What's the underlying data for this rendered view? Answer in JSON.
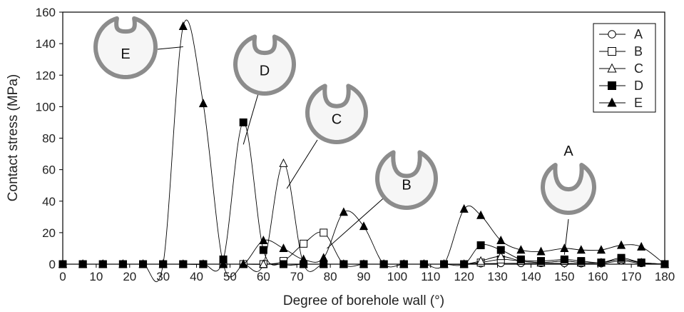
{
  "chart_data": {
    "type": "line",
    "xlabel": "Degree of borehole wall (°)",
    "ylabel": "Contact stress (MPa)",
    "xlim": [
      0,
      180
    ],
    "ylim": [
      0,
      160
    ],
    "xticks": [
      0,
      10,
      20,
      30,
      40,
      50,
      60,
      70,
      80,
      90,
      100,
      110,
      120,
      130,
      140,
      150,
      160,
      170,
      180
    ],
    "yticks": [
      0,
      20,
      40,
      60,
      80,
      100,
      120,
      140,
      160
    ],
    "legend_position": "top-right",
    "series": [
      {
        "name": "A",
        "marker": "circle-open",
        "x": [
          0,
          6,
          12,
          18,
          24,
          30,
          36,
          42,
          48,
          54,
          60,
          66,
          72,
          78,
          84,
          90,
          96,
          102,
          108,
          114,
          120,
          125,
          131,
          137,
          143,
          150,
          155,
          161,
          167,
          173,
          180
        ],
        "y": [
          0,
          0,
          0,
          0,
          0,
          0,
          0,
          0,
          0,
          0,
          0,
          0,
          0,
          0,
          0,
          0,
          0,
          0,
          0,
          0,
          0,
          0.3,
          0.5,
          0.5,
          0.5,
          0.5,
          0.3,
          0.3,
          2,
          0.5,
          0
        ]
      },
      {
        "name": "B",
        "marker": "square-open",
        "x": [
          0,
          6,
          12,
          18,
          24,
          30,
          36,
          42,
          48,
          54,
          60,
          66,
          72,
          78,
          84,
          90,
          96,
          102,
          108,
          114,
          120,
          125,
          131,
          137,
          143,
          150,
          155,
          161,
          167,
          173,
          180
        ],
        "y": [
          0,
          0,
          0,
          0,
          0,
          0,
          0,
          0,
          0,
          0,
          0,
          2,
          13,
          20,
          0,
          0,
          0,
          0,
          0,
          0,
          0,
          1,
          3,
          2,
          1,
          2,
          1,
          1,
          3,
          1,
          0
        ]
      },
      {
        "name": "C",
        "marker": "triangle-open",
        "x": [
          0,
          6,
          12,
          18,
          24,
          30,
          36,
          42,
          48,
          54,
          60,
          66,
          72,
          78,
          84,
          90,
          96,
          102,
          108,
          114,
          120,
          125,
          131,
          137,
          143,
          150,
          155,
          161,
          167,
          173,
          180
        ],
        "y": [
          0,
          0,
          0,
          0,
          0,
          0,
          0,
          0,
          0,
          0,
          0,
          64,
          0,
          0,
          0,
          0,
          0,
          0,
          0,
          0,
          0,
          2,
          5,
          2,
          1,
          2,
          1,
          1,
          3,
          1,
          0
        ]
      },
      {
        "name": "D",
        "marker": "square-filled",
        "x": [
          0,
          6,
          12,
          18,
          24,
          30,
          36,
          42,
          48,
          54,
          60,
          66,
          72,
          78,
          84,
          90,
          96,
          102,
          108,
          114,
          120,
          125,
          131,
          137,
          143,
          150,
          155,
          161,
          167,
          173,
          180
        ],
        "y": [
          0,
          0,
          0,
          0,
          0,
          0,
          0,
          0,
          3,
          90,
          9,
          0,
          0,
          0,
          0,
          0,
          0,
          0,
          0,
          0,
          0,
          12,
          9,
          3,
          2,
          3,
          2,
          1,
          4,
          1,
          0
        ]
      },
      {
        "name": "E",
        "marker": "triangle-filled",
        "x": [
          0,
          6,
          12,
          18,
          24,
          30,
          36,
          42,
          48,
          54,
          60,
          66,
          72,
          78,
          84,
          90,
          96,
          102,
          108,
          114,
          120,
          125,
          131,
          137,
          143,
          150,
          155,
          161,
          167,
          173,
          180
        ],
        "y": [
          0,
          0,
          0,
          0,
          0,
          0,
          151,
          102,
          0,
          0,
          15,
          10,
          3,
          4,
          33,
          24,
          0,
          0,
          0,
          0,
          35,
          31,
          15,
          9,
          8,
          10,
          9,
          9,
          12,
          11,
          0
        ]
      }
    ],
    "annotations": [
      {
        "label": "E",
        "points_to": {
          "x": 36,
          "y": 138
        }
      },
      {
        "label": "D",
        "points_to": {
          "x": 54,
          "y": 76
        }
      },
      {
        "label": "C",
        "points_to": {
          "x": 67,
          "y": 48
        }
      },
      {
        "label": "B",
        "points_to": {
          "x": 79,
          "y": 10
        }
      },
      {
        "label": "A",
        "points_to": {
          "x": 150,
          "y": 6
        }
      }
    ]
  }
}
